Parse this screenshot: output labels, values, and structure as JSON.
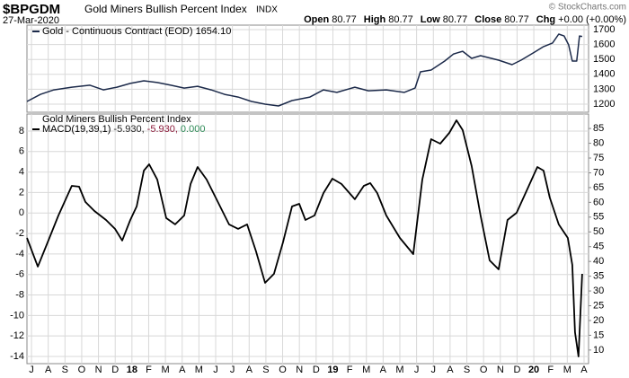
{
  "header": {
    "symbol": "$BPGDM",
    "name": "Gold Miners Bullish Percent Index",
    "exchange": "INDX",
    "date": "27-Mar-2020",
    "copyright": "© StockCharts.com",
    "quote": [
      {
        "label": "Open",
        "value": 80.77
      },
      {
        "label": "High",
        "value": 80.77
      },
      {
        "label": "Low",
        "value": 80.77
      },
      {
        "label": "Close",
        "value": 80.77
      },
      {
        "label": "Chg",
        "value": "+0.00 (+0.00%)"
      }
    ]
  },
  "chart_data": [
    {
      "type": "line",
      "legend": "Gold - Continuous Contract (EOD) 1654.10",
      "grid": true,
      "xlim": [
        -0.27,
        33.27
      ],
      "ylim": [
        1146,
        1730
      ],
      "yticks": [
        1200,
        1300,
        1400,
        1500,
        1600,
        1700
      ],
      "x": [
        -0.27,
        0.54,
        1.34,
        2.41,
        3.49,
        4.29,
        5.1,
        5.9,
        6.71,
        7.51,
        8.32,
        9.12,
        9.92,
        10.73,
        11.53,
        12.34,
        13.14,
        13.95,
        14.75,
        15.56,
        16.63,
        17.44,
        18.24,
        19.31,
        20.12,
        21.19,
        22.26,
        22.91,
        23.23,
        23.87,
        24.68,
        25.21,
        25.75,
        26.29,
        26.82,
        27.9,
        28.7,
        29.24,
        30.04,
        30.58,
        31.12,
        31.49,
        31.81,
        32.08,
        32.3,
        32.56,
        32.73,
        32.89
      ],
      "series": [
        {
          "name": "Gold - Continuous Contract (EOD)",
          "color": "#1c2a4a",
          "values": [
            1218,
            1266,
            1296,
            1314,
            1327,
            1296,
            1314,
            1339,
            1357,
            1345,
            1327,
            1308,
            1320,
            1296,
            1266,
            1248,
            1218,
            1200,
            1188,
            1224,
            1248,
            1296,
            1279,
            1314,
            1290,
            1296,
            1279,
            1308,
            1417,
            1429,
            1489,
            1537,
            1555,
            1507,
            1525,
            1495,
            1465,
            1495,
            1549,
            1586,
            1610,
            1670,
            1657,
            1598,
            1489,
            1489,
            1657,
            1654
          ]
        }
      ]
    },
    {
      "type": "line",
      "title": "Gold Miners Bullish Percent Index",
      "legend": "MACD(19,39,1)",
      "legend_values": [
        "-5.930,",
        "-5.930,",
        "0.000"
      ],
      "legend_colors": [
        "#222222",
        "#8b1a3a",
        "#2e8b57"
      ],
      "grid": true,
      "xlim": [
        -0.27,
        33.27
      ],
      "ylim": [
        -14.7,
        9.66
      ],
      "yticks": [
        -14,
        -12,
        -10,
        -8,
        -6,
        -4,
        -2,
        0,
        2,
        4,
        6,
        8
      ],
      "y2lim": [
        5.4,
        89.9
      ],
      "y2ticks": [
        10,
        15,
        20,
        25,
        30,
        35,
        40,
        45,
        50,
        55,
        60,
        65,
        70,
        75,
        80,
        85
      ],
      "xticks": [
        {
          "value": 0,
          "label": "J"
        },
        {
          "value": 1,
          "label": "A"
        },
        {
          "value": 2,
          "label": "S"
        },
        {
          "value": 3,
          "label": "O"
        },
        {
          "value": 4,
          "label": "N"
        },
        {
          "value": 5,
          "label": "D"
        },
        {
          "value": 6,
          "label": "18"
        },
        {
          "value": 7,
          "label": "F"
        },
        {
          "value": 8,
          "label": "M"
        },
        {
          "value": 9,
          "label": "A"
        },
        {
          "value": 10,
          "label": "M"
        },
        {
          "value": 11,
          "label": "J"
        },
        {
          "value": 12,
          "label": "J"
        },
        {
          "value": 13,
          "label": "A"
        },
        {
          "value": 14,
          "label": "S"
        },
        {
          "value": 15,
          "label": "O"
        },
        {
          "value": 16,
          "label": "N"
        },
        {
          "value": 17,
          "label": "D"
        },
        {
          "value": 18,
          "label": "19"
        },
        {
          "value": 19,
          "label": "F"
        },
        {
          "value": 20,
          "label": "M"
        },
        {
          "value": 21,
          "label": "A"
        },
        {
          "value": 22,
          "label": "M"
        },
        {
          "value": 23,
          "label": "J"
        },
        {
          "value": 24,
          "label": "J"
        },
        {
          "value": 25,
          "label": "A"
        },
        {
          "value": 26,
          "label": "S"
        },
        {
          "value": 27,
          "label": "O"
        },
        {
          "value": 28,
          "label": "N"
        },
        {
          "value": 29,
          "label": "D"
        },
        {
          "value": 30,
          "label": "20"
        },
        {
          "value": 31,
          "label": "F"
        },
        {
          "value": 32,
          "label": "M"
        },
        {
          "value": 33,
          "label": "A"
        }
      ],
      "x": [
        -0.27,
        0.38,
        1.07,
        1.61,
        2.41,
        2.84,
        3.22,
        3.76,
        4.45,
        4.99,
        5.42,
        5.9,
        6.28,
        6.71,
        7.03,
        7.51,
        8.05,
        8.58,
        9.12,
        9.5,
        9.92,
        10.46,
        11.0,
        11.8,
        12.34,
        12.88,
        13.41,
        13.95,
        14.48,
        15.02,
        15.56,
        15.99,
        16.36,
        16.9,
        17.44,
        17.97,
        18.51,
        19.31,
        19.85,
        20.23,
        20.65,
        21.19,
        22.0,
        22.8,
        23.34,
        23.87,
        24.41,
        24.95,
        25.38,
        25.75,
        26.29,
        26.82,
        27.36,
        27.9,
        28.43,
        28.97,
        29.51,
        30.21,
        30.58,
        30.95,
        31.49,
        32.03,
        32.3,
        32.46,
        32.67,
        32.89
      ],
      "series": [
        {
          "name": "MACD(19,39,1)",
          "color": "#000000",
          "values": [
            -2.43,
            -5.23,
            -2.43,
            -0.24,
            2.65,
            2.57,
            1.08,
            0.2,
            -0.68,
            -1.55,
            -2.69,
            -0.68,
            0.64,
            4.14,
            4.75,
            3.27,
            -0.5,
            -1.11,
            -0.24,
            2.83,
            4.49,
            3.27,
            1.51,
            -1.11,
            -1.55,
            -1.11,
            -3.74,
            -6.81,
            -5.94,
            -2.87,
            0.64,
            0.9,
            -0.68,
            -0.24,
            1.95,
            3.35,
            2.83,
            1.34,
            2.65,
            2.92,
            1.95,
            -0.24,
            -2.43,
            -4.01,
            3.27,
            7.21,
            6.77,
            7.82,
            9.05,
            8.09,
            4.58,
            -0.24,
            -4.62,
            -5.5,
            -0.68,
            0.02,
            1.95,
            4.49,
            4.14,
            1.51,
            -1.11,
            -2.43,
            -5.06,
            -11.63,
            -14.0,
            -5.94
          ]
        }
      ]
    }
  ]
}
